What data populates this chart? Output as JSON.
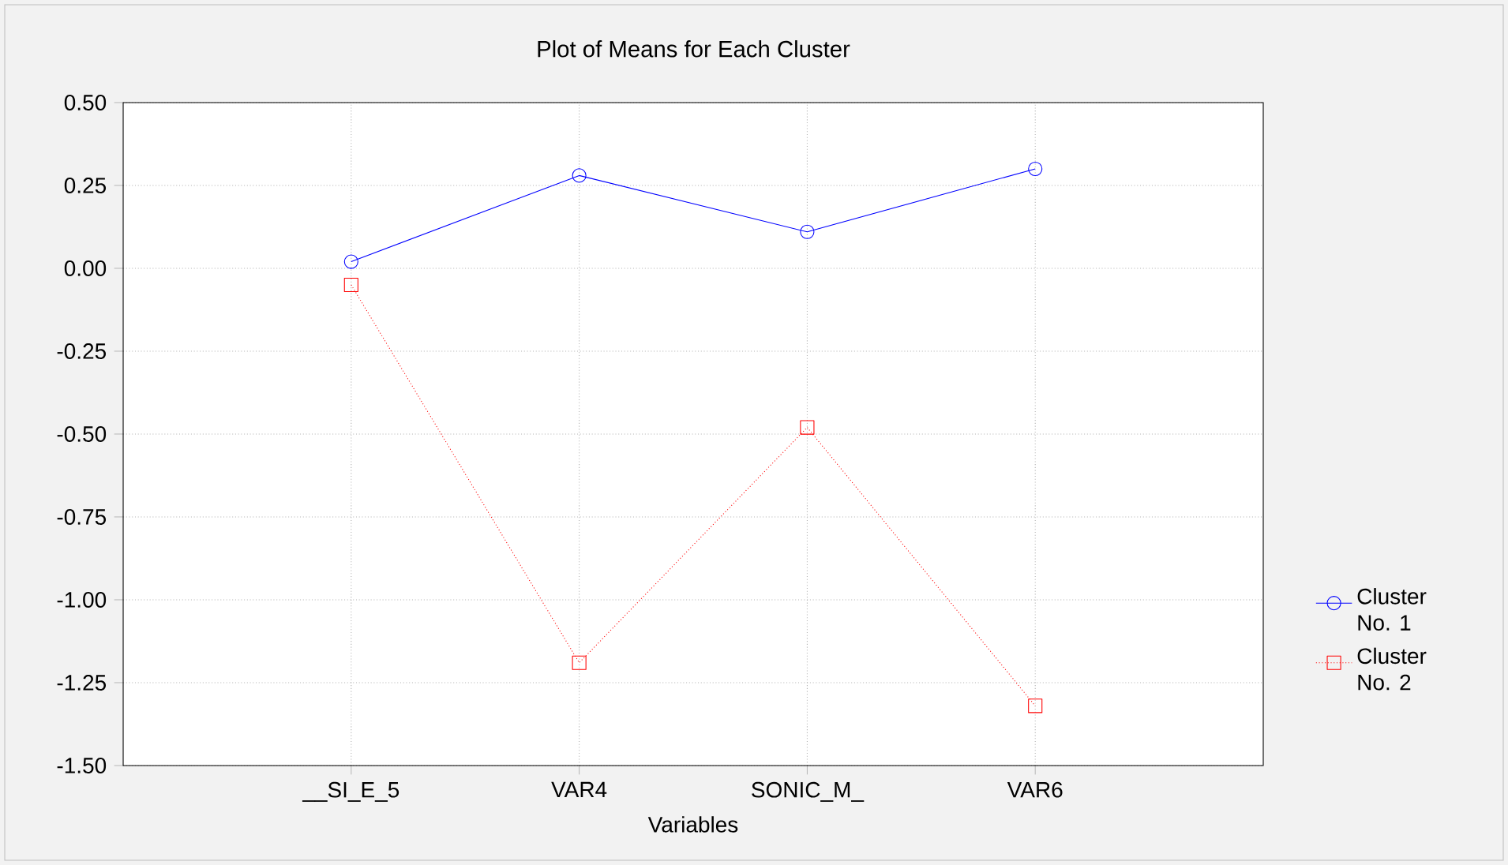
{
  "chart_data": {
    "type": "line",
    "title": "Plot of Means for Each Cluster",
    "xlabel": "Variables",
    "categories": [
      "__SI_E_5",
      "VAR4",
      "SONIC_M_",
      "VAR6"
    ],
    "series": [
      {
        "name": "Cluster No. 1",
        "color": "#0000ff",
        "values": [
          0.02,
          0.28,
          0.11,
          0.3
        ],
        "marker": "circle",
        "line_style": "solid"
      },
      {
        "name": "Cluster No. 2",
        "color": "#ff0000",
        "values": [
          -0.05,
          -1.19,
          -0.48,
          -1.32
        ],
        "marker": "square",
        "line_style": "dotted"
      }
    ],
    "ylim": [
      -1.5,
      0.5
    ],
    "yticks": [
      {
        "value": -1.5,
        "label": "-1.50"
      },
      {
        "value": -1.25,
        "label": "-1.25"
      },
      {
        "value": -1.0,
        "label": "-1.00"
      },
      {
        "value": -0.75,
        "label": "-0.75"
      },
      {
        "value": -0.5,
        "label": "-0.50"
      },
      {
        "value": -0.25,
        "label": "-0.25"
      },
      {
        "value": 0,
        "label": "0.00"
      },
      {
        "value": 0.25,
        "label": "0.25"
      },
      {
        "value": 0.5,
        "label": "0.50"
      }
    ],
    "grid": true,
    "legend": "right"
  }
}
